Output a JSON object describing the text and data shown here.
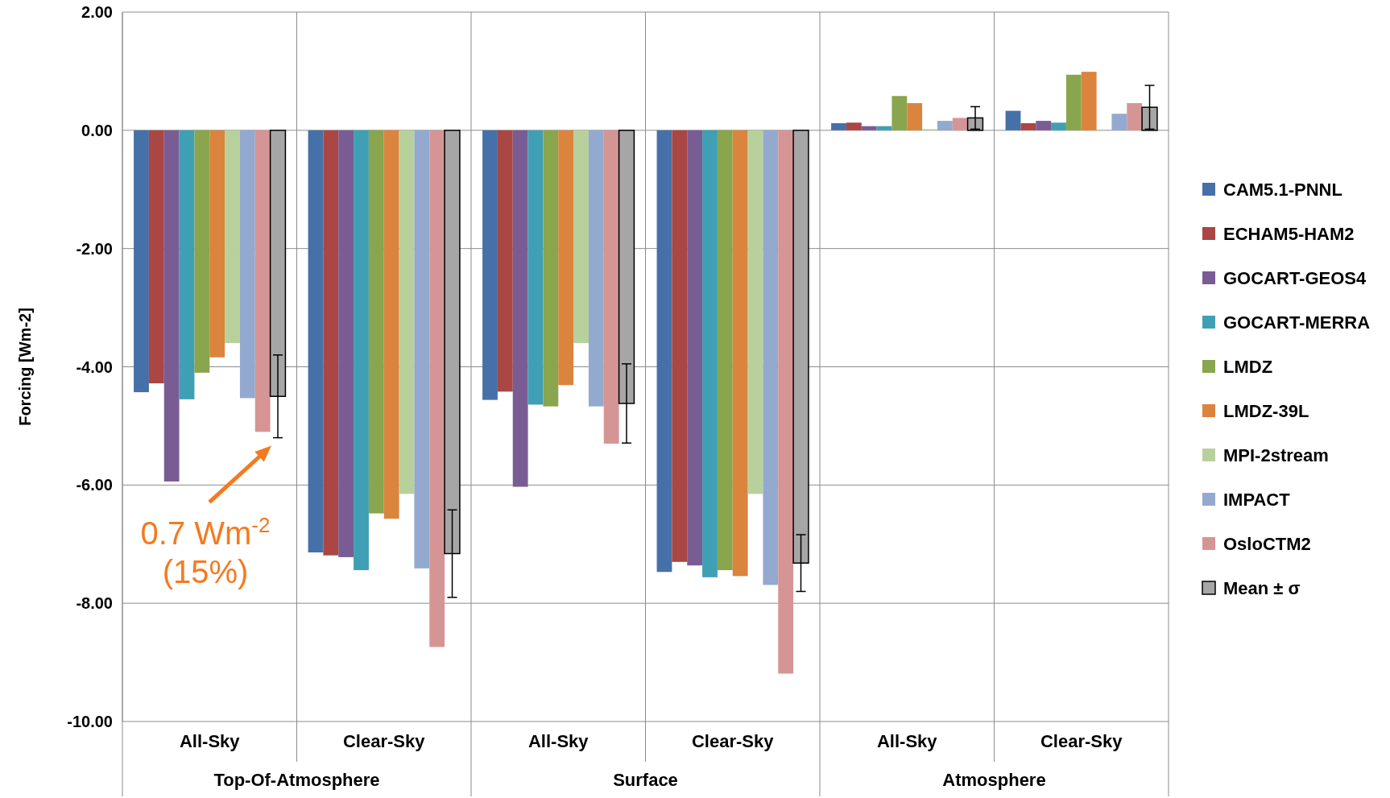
{
  "chart_data": {
    "type": "bar",
    "ylabel": "Forcing [Wm-2]",
    "categories": [
      "All-Sky",
      "Clear-Sky",
      "All-Sky",
      "Clear-Sky",
      "All-Sky",
      "Clear-Sky"
    ],
    "series": [
      {
        "name": "CAM5.1-PNNL",
        "color": "#4670a8",
        "values": [
          -4.43,
          -7.14,
          -4.56,
          -7.47,
          0.12,
          0.33
        ]
      },
      {
        "name": "ECHAM5-HAM2",
        "color": "#aa4643",
        "values": [
          -4.28,
          -7.19,
          -4.42,
          -7.3,
          0.13,
          0.12
        ]
      },
      {
        "name": "GOCART-GEOS4",
        "color": "#7a5c95",
        "values": [
          -5.94,
          -7.22,
          -6.03,
          -7.36,
          0.07,
          0.16
        ]
      },
      {
        "name": "GOCART-MERRA",
        "color": "#3fa0b5",
        "values": [
          -4.55,
          -7.44,
          -4.64,
          -7.56,
          0.07,
          0.13
        ]
      },
      {
        "name": "LMDZ",
        "color": "#89a54e",
        "values": [
          -4.1,
          -6.48,
          -4.67,
          -7.44,
          0.58,
          0.94
        ]
      },
      {
        "name": "LMDZ-39L",
        "color": "#db843d",
        "values": [
          -3.84,
          -6.57,
          -4.31,
          -7.54,
          0.46,
          0.99
        ]
      },
      {
        "name": "MPI-2stream",
        "color": "#b8d19c",
        "values": [
          -3.6,
          -6.15,
          -3.6,
          -6.15,
          0.02,
          0
        ]
      },
      {
        "name": "IMPACT",
        "color": "#93a9d0",
        "values": [
          -4.53,
          -7.41,
          -4.67,
          -7.69,
          0.16,
          0.28
        ]
      },
      {
        "name": "OsloCTM2",
        "color": "#d69595",
        "values": [
          -5.1,
          -8.74,
          -5.3,
          -9.19,
          0.21,
          0.46
        ]
      },
      {
        "name": "Mean ± σ",
        "color": "#a6a6a6",
        "values": [
          -4.5,
          -7.16,
          -4.62,
          -7.32,
          0.21,
          0.39
        ],
        "errors": [
          0.7,
          0.74,
          0.67,
          0.48,
          0.19,
          0.37
        ]
      }
    ],
    "ylim": [
      -10,
      2
    ],
    "yticks": [
      {
        "value": -10,
        "label": "-10.00"
      },
      {
        "value": -8,
        "label": "-8.00"
      },
      {
        "value": -6,
        "label": "-6.00"
      },
      {
        "value": -4,
        "label": "-4.00"
      },
      {
        "value": -2,
        "label": "-2.00"
      },
      {
        "value": 0,
        "label": "0.00"
      },
      {
        "value": 2,
        "label": "2.00"
      }
    ],
    "grid": true,
    "legend": "right",
    "annotations": [
      "Top-Of-Atmosphere",
      "Surface",
      "Atmosphere",
      "0.7 Wm$^{-2}$ (15%)"
    ]
  }
}
